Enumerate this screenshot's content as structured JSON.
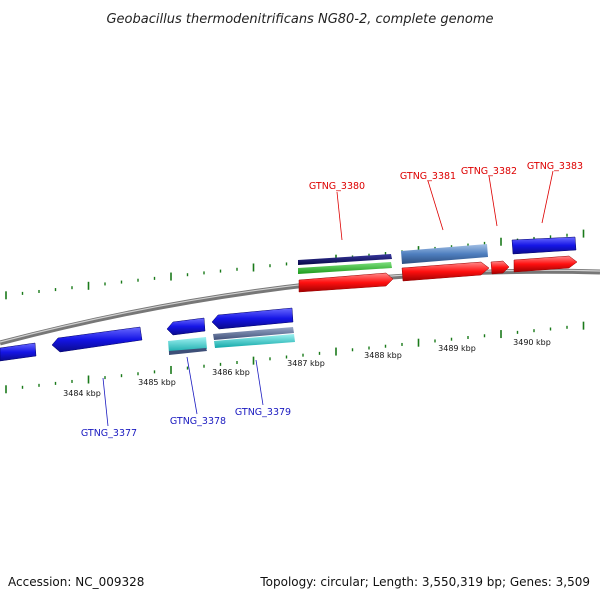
{
  "title": "Geobacillus thermodenitrificans NG80-2, complete genome",
  "accession": "Accession: NC_009328",
  "topology": "Topology: circular; Length: 3,550,319 bp; Genes: 3,509",
  "colors": {
    "backbone": "#888888",
    "ticks": "#1a7a1a",
    "label_top": "#dd0000",
    "label_bottom": "#1a1ac0"
  },
  "kbp_labels": [
    "3484 kbp",
    "3485 kbp",
    "3486 kbp",
    "3487 kbp",
    "3488 kbp",
    "3489 kbp",
    "3490 kbp"
  ],
  "gene_labels_top": [
    "GTNG_3380",
    "GTNG_3381",
    "GTNG_3382",
    "GTNG_3383"
  ],
  "gene_labels_bottom": [
    "GTNG_3377",
    "GTNG_3378",
    "GTNG_3379"
  ],
  "feature_colors": {
    "cds_forward": "#1010e0",
    "cds_reverse": "#1010e0",
    "rna": "#ff0000",
    "steelblue": "#4f7fbf",
    "navy": "#0a0a70",
    "green": "#2bc02b",
    "cyan": "#20c8c8",
    "slate": "#5a6f9a"
  }
}
